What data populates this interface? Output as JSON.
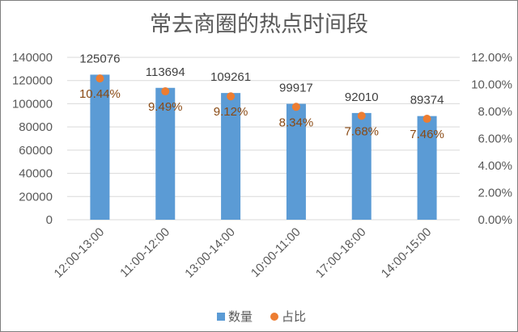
{
  "chart_data": {
    "type": "bar",
    "title": "常去商圈的热点时间段",
    "categories": [
      "12:00-13:00",
      "11:00-12:00",
      "13:00-14:00",
      "10:00-11:00",
      "17:00-18:00",
      "14:00-15:00"
    ],
    "series": [
      {
        "name": "数量",
        "type": "bar",
        "axis": "left",
        "values": [
          125076,
          113694,
          109261,
          99917,
          92010,
          89374
        ],
        "labels": [
          "125076",
          "113694",
          "109261",
          "99917",
          "92010",
          "89374"
        ]
      },
      {
        "name": "占比",
        "type": "scatter",
        "axis": "right",
        "values": [
          10.44,
          9.49,
          9.12,
          8.34,
          7.68,
          7.46
        ],
        "labels": [
          "10.44%",
          "9.49%",
          "9.12%",
          "8.34%",
          "7.68%",
          "7.46%"
        ]
      }
    ],
    "y_left": {
      "range": [
        0,
        140000
      ],
      "ticks": [
        0,
        20000,
        40000,
        60000,
        80000,
        100000,
        120000,
        140000
      ],
      "tick_labels": [
        "0",
        "20000",
        "40000",
        "60000",
        "80000",
        "100000",
        "120000",
        "140000"
      ]
    },
    "y_right": {
      "range": [
        0,
        12
      ],
      "ticks": [
        0,
        2,
        4,
        6,
        8,
        10,
        12
      ],
      "tick_labels": [
        "0.00%",
        "2.00%",
        "4.00%",
        "6.00%",
        "8.00%",
        "10.00%",
        "12.00%"
      ]
    },
    "grid": true,
    "legend_position": "bottom",
    "colors": {
      "bars": "#5b9bd5",
      "markers": "#ed7d31"
    }
  }
}
